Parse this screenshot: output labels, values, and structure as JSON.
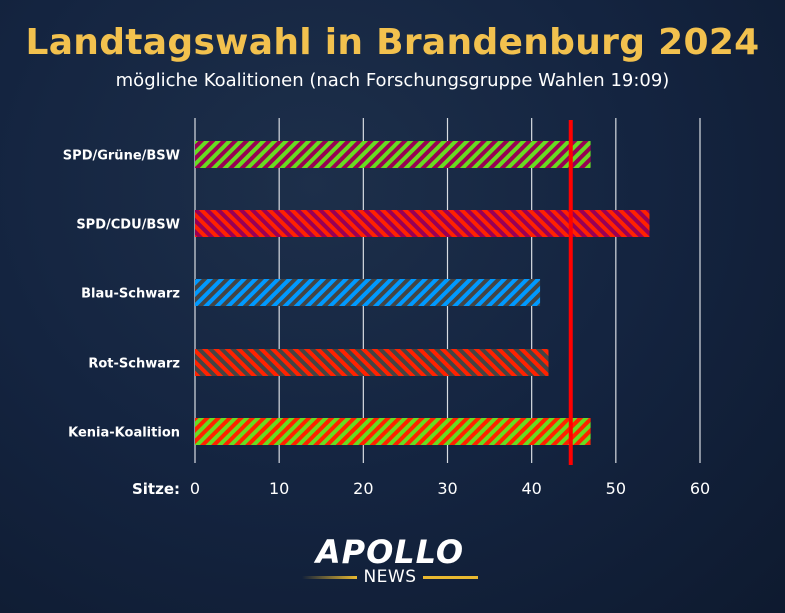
{
  "chart_data": {
    "type": "bar",
    "orientation": "horizontal",
    "title": "Landtagswahl in Brandenburg 2024",
    "subtitle": "mögliche Koalitionen (nach Forschungsgruppe Wahlen 19:09)",
    "xlabel": "Sitze:",
    "categories": [
      "SPD/Grüne/BSW",
      "SPD/CDU/BSW",
      "Blau-Schwarz",
      "Rot-Schwarz",
      "Kenia-Koalition"
    ],
    "values": [
      47,
      54,
      41,
      42,
      47
    ],
    "bar_colors": [
      {
        "base": "#66dd22",
        "stripe": "#990055",
        "dir": "back"
      },
      {
        "base": "#990055",
        "stripe": "#ff2200",
        "dir": "fwd"
      },
      {
        "base": "#444444",
        "stripe": "#0099ff",
        "dir": "back"
      },
      {
        "base": "#444444",
        "stripe": "#ff2200",
        "dir": "fwd"
      },
      {
        "base": "#66dd22",
        "stripe": "#ff2200",
        "dir": "back"
      }
    ],
    "xlim": [
      0,
      60
    ],
    "xticks": [
      0,
      10,
      20,
      30,
      40,
      50,
      60
    ],
    "grid": true,
    "majority_line": {
      "value": 45,
      "color": "#ff0000"
    }
  },
  "logo": {
    "name": "APOLLO",
    "sub": "NEWS"
  }
}
